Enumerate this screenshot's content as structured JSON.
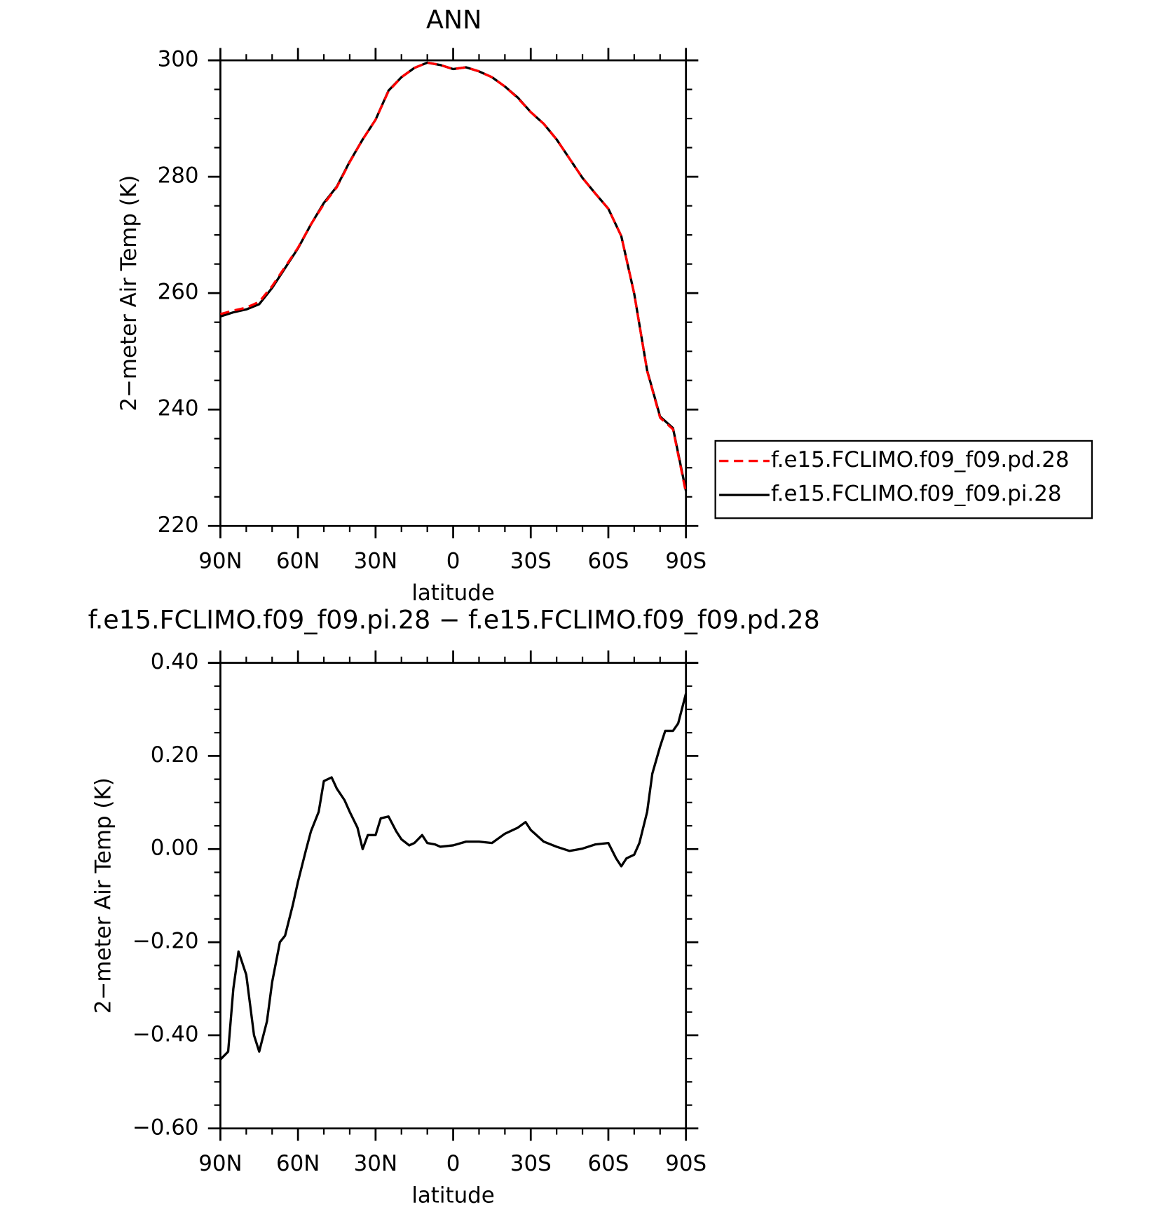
{
  "chart_data": [
    {
      "type": "line",
      "title": "ANN",
      "xlabel": "latitude",
      "ylabel": "2−meter Air Temp (K)",
      "x": [
        90,
        85,
        80,
        75,
        70,
        65,
        60,
        55,
        50,
        45,
        40,
        35,
        30,
        25,
        20,
        15,
        10,
        5,
        0,
        -5,
        -10,
        -15,
        -20,
        -25,
        -30,
        -35,
        -40,
        -45,
        -50,
        -55,
        -60,
        -65,
        -70,
        -75,
        -80,
        -85,
        -90
      ],
      "series": [
        {
          "name": "f.e15.FCLIMO.f09_f09.pd.28",
          "color": "#ff0000",
          "dash": true,
          "values": [
            256.4,
            257.0,
            257.5,
            258.5,
            261.2,
            264.5,
            267.8,
            271.8,
            275.3,
            278.2,
            282.5,
            286.4,
            289.8,
            294.7,
            297.1,
            298.7,
            299.6,
            299.2,
            298.5,
            298.8,
            298.1,
            297.1,
            295.5,
            293.5,
            291.1,
            289.1,
            286.4,
            283.1,
            279.8,
            277.1,
            274.5,
            269.8,
            259.9,
            246.6,
            238.6,
            236.6,
            225.7
          ]
        },
        {
          "name": "f.e15.FCLIMO.f09_f09.pi.28",
          "color": "#000000",
          "dash": false,
          "values": [
            256.0,
            256.7,
            257.2,
            258.1,
            260.9,
            264.3,
            267.7,
            271.8,
            275.5,
            278.3,
            282.6,
            286.4,
            289.8,
            294.8,
            297.1,
            298.7,
            299.6,
            299.2,
            298.5,
            298.8,
            298.1,
            297.1,
            295.5,
            293.6,
            291.1,
            289.1,
            286.4,
            283.1,
            279.8,
            277.1,
            274.5,
            269.8,
            259.9,
            246.7,
            238.8,
            236.8,
            226.0
          ]
        }
      ],
      "xlim": [
        90,
        -90
      ],
      "xticks": [
        {
          "value": 90,
          "label": "90N"
        },
        {
          "value": 60,
          "label": "60N"
        },
        {
          "value": 30,
          "label": "30N"
        },
        0,
        {
          "value": -30,
          "label": "30S"
        },
        {
          "value": -60,
          "label": "60S"
        },
        {
          "value": -90,
          "label": "90S"
        }
      ],
      "minor_xticks": [
        80,
        70,
        50,
        40,
        20,
        10,
        -10,
        -20,
        -40,
        -50,
        -70,
        -80
      ],
      "ylim": [
        220,
        300
      ],
      "yticks": [
        220,
        240,
        260,
        280,
        300
      ],
      "minor_yticks": [
        225,
        230,
        235,
        245,
        250,
        255,
        265,
        270,
        275,
        285,
        290,
        295
      ],
      "legend": "right"
    },
    {
      "type": "line",
      "title": "f.e15.FCLIMO.f09_f09.pi.28 − f.e15.FCLIMO.f09_f09.pd.28",
      "xlabel": "latitude",
      "ylabel": "2−meter Air Temp (K)",
      "color": "#000000",
      "x": [
        90,
        87,
        85,
        83,
        80,
        77,
        75,
        72,
        70,
        67,
        65,
        62,
        60,
        57,
        55,
        52,
        50,
        47,
        45,
        42,
        40,
        37,
        35,
        33,
        30,
        28,
        25,
        22,
        20,
        17,
        15,
        12,
        10,
        7,
        5,
        0,
        -5,
        -10,
        -15,
        -20,
        -25,
        -28,
        -30,
        -35,
        -40,
        -45,
        -50,
        -55,
        -60,
        -63,
        -65,
        -67,
        -70,
        -72,
        -75,
        -77,
        -80,
        -82,
        -85,
        -87,
        -90
      ],
      "values": [
        -0.452,
        -0.435,
        -0.3,
        -0.22,
        -0.27,
        -0.4,
        -0.435,
        -0.37,
        -0.286,
        -0.2,
        -0.186,
        -0.12,
        -0.07,
        -0.004,
        0.038,
        0.08,
        0.146,
        0.154,
        0.13,
        0.105,
        0.08,
        0.046,
        0.0,
        0.03,
        0.03,
        0.066,
        0.07,
        0.038,
        0.021,
        0.008,
        0.013,
        0.03,
        0.013,
        0.01,
        0.005,
        0.008,
        0.016,
        0.016,
        0.013,
        0.033,
        0.046,
        0.058,
        0.041,
        0.016,
        0.005,
        -0.004,
        0.001,
        0.01,
        0.013,
        -0.02,
        -0.037,
        -0.02,
        -0.012,
        0.013,
        0.08,
        0.162,
        0.22,
        0.254,
        0.254,
        0.27,
        0.334
      ],
      "xlim": [
        90,
        -90
      ],
      "xticks": [
        {
          "value": 90,
          "label": "90N"
        },
        {
          "value": 60,
          "label": "60N"
        },
        {
          "value": 30,
          "label": "30N"
        },
        0,
        {
          "value": -30,
          "label": "30S"
        },
        {
          "value": -60,
          "label": "60S"
        },
        {
          "value": -90,
          "label": "90S"
        }
      ],
      "minor_xticks": [
        80,
        70,
        50,
        40,
        20,
        10,
        -10,
        -20,
        -40,
        -50,
        -70,
        -80
      ],
      "ylim": [
        -0.6,
        0.4
      ],
      "yticks": [
        {
          "value": -0.6,
          "label": "−0.60"
        },
        {
          "value": -0.4,
          "label": "−0.40"
        },
        {
          "value": -0.2,
          "label": "−0.20"
        },
        {
          "value": 0,
          "label": "0.00"
        },
        {
          "value": 0.2,
          "label": "0.20"
        },
        {
          "value": 0.4,
          "label": "0.40"
        }
      ],
      "minor_yticks": [
        -0.55,
        -0.5,
        -0.45,
        -0.35,
        -0.3,
        -0.25,
        -0.15,
        -0.1,
        -0.05,
        0.05,
        0.1,
        0.15,
        0.25,
        0.3,
        0.35
      ]
    }
  ]
}
